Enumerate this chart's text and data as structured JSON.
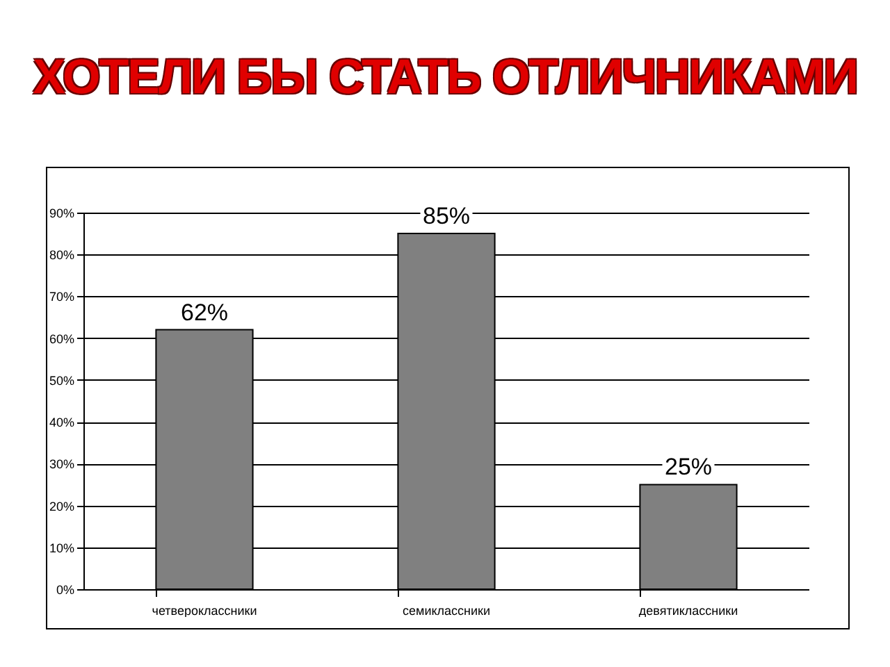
{
  "chart_data": {
    "type": "bar",
    "title": "ХОТЕЛИ БЫ СТАТЬ ОТЛИЧНИКАМИ",
    "categories": [
      "четвероклассники",
      "семиклассники",
      "девятиклассники"
    ],
    "values": [
      62,
      85,
      25
    ],
    "color": "#808080",
    "value_labels": [
      "62%",
      "85%",
      "25%"
    ],
    "ylim": [
      0,
      90
    ],
    "yticks": [
      {
        "value": 0,
        "label": "0%"
      },
      {
        "value": 10,
        "label": "10%"
      },
      {
        "value": 20,
        "label": "20%"
      },
      {
        "value": 30,
        "label": "30%"
      },
      {
        "value": 40,
        "label": "40%"
      },
      {
        "value": 50,
        "label": "50%"
      },
      {
        "value": 60,
        "label": "60%"
      },
      {
        "value": 70,
        "label": "70%"
      },
      {
        "value": 80,
        "label": "80%"
      },
      {
        "value": 90,
        "label": "90%"
      }
    ],
    "grid": "y"
  }
}
